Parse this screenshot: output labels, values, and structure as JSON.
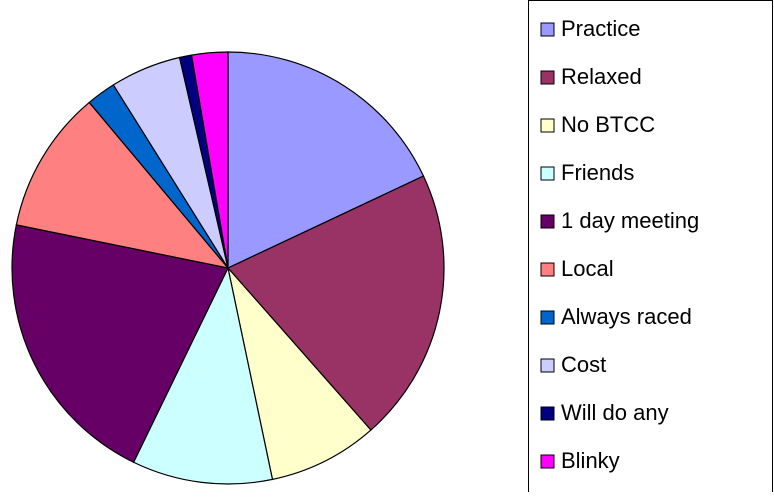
{
  "chart_data": {
    "type": "pie",
    "categories": [
      "Practice",
      "Relaxed",
      "No BTCC",
      "Friends",
      "1 day meeting",
      "Local",
      "Always raced",
      "Cost",
      "Will do any",
      "Blinky"
    ],
    "values": [
      18,
      20.5,
      8.2,
      10.5,
      21,
      10.7,
      2.2,
      5.3,
      0.9,
      2.7
    ],
    "colors": [
      "#9999ff",
      "#993366",
      "#ffffcc",
      "#ccffff",
      "#660066",
      "#ff8080",
      "#0066cc",
      "#ccccff",
      "#000080",
      "#ff00ff"
    ],
    "legend": "right"
  }
}
